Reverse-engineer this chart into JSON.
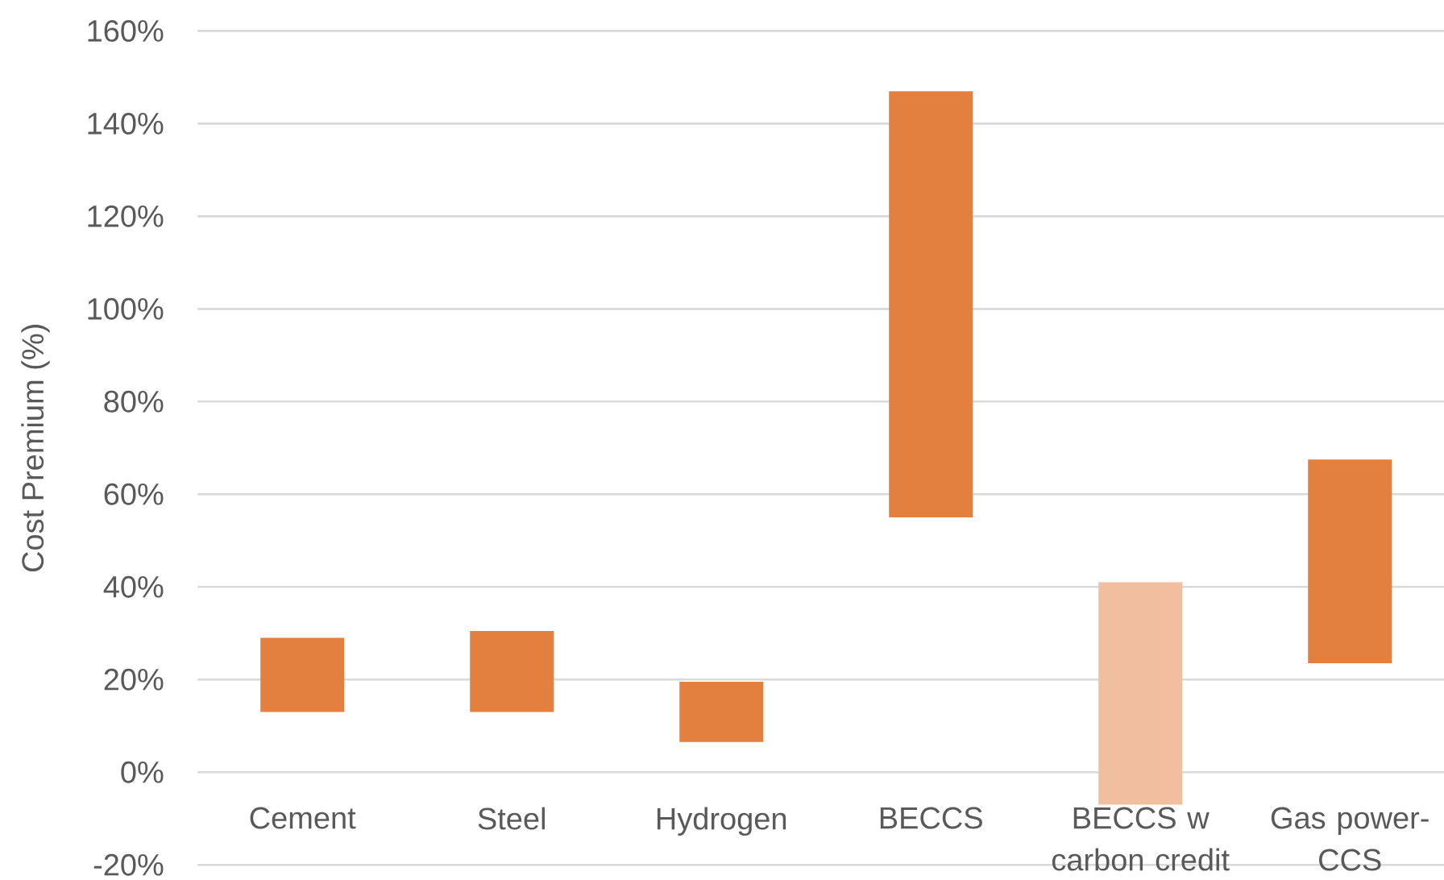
{
  "chart_data": {
    "type": "bar",
    "ylabel": "Cost Premium (%)",
    "categories": [
      "Cement",
      "Steel",
      "Hydrogen",
      "BECCS",
      "BECCS w carbon credit",
      "Gas power-CCS"
    ],
    "base": [
      13,
      13,
      6.5,
      55,
      -7,
      23.5
    ],
    "values": [
      16,
      17.5,
      13,
      92,
      48,
      44
    ],
    "colors": [
      "#e3803f",
      "#e3803f",
      "#e3803f",
      "#e3803f",
      "#f1bf9f",
      "#e3803f"
    ],
    "ylim": [
      -20,
      160
    ],
    "yticks": [
      {
        "value": -20,
        "label": "-20%"
      },
      {
        "value": 0,
        "label": "0%"
      },
      {
        "value": 20,
        "label": "20%"
      },
      {
        "value": 40,
        "label": "40%"
      },
      {
        "value": 60,
        "label": "60%"
      },
      {
        "value": 80,
        "label": "80%"
      },
      {
        "value": 100,
        "label": "100%"
      },
      {
        "value": 120,
        "label": "120%"
      },
      {
        "value": 140,
        "label": "140%"
      },
      {
        "value": 160,
        "label": "160%"
      }
    ],
    "grid": "y"
  }
}
